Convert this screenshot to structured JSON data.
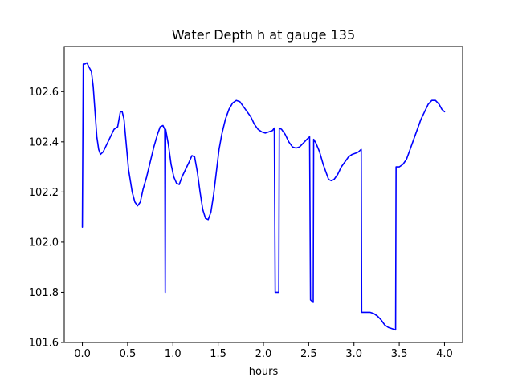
{
  "chart_data": {
    "type": "line",
    "title": "Water Depth h at gauge 135",
    "xlabel": "hours",
    "ylabel": "",
    "xlim": [
      -0.2,
      4.2
    ],
    "ylim": [
      101.6,
      102.78
    ],
    "xticks": [
      0.0,
      0.5,
      1.0,
      1.5,
      2.0,
      2.5,
      3.0,
      3.5,
      4.0
    ],
    "xtick_labels": [
      "0.0",
      "0.5",
      "1.0",
      "1.5",
      "2.0",
      "2.5",
      "3.0",
      "3.5",
      "4.0"
    ],
    "yticks": [
      101.6,
      101.8,
      102.0,
      102.2,
      102.4,
      102.6
    ],
    "ytick_labels": [
      "101.6",
      "101.8",
      "102.0",
      "102.2",
      "102.4",
      "102.6"
    ],
    "grid": false,
    "legend": "none",
    "colors": {
      "line": "#0000ff",
      "axes": "#000000",
      "background": "#ffffff"
    },
    "series": [
      {
        "points": [
          [
            0.0,
            102.06
          ],
          [
            0.01,
            102.71
          ],
          [
            0.03,
            102.71
          ],
          [
            0.05,
            102.715
          ],
          [
            0.07,
            102.7
          ],
          [
            0.1,
            102.68
          ],
          [
            0.12,
            102.62
          ],
          [
            0.14,
            102.52
          ],
          [
            0.16,
            102.42
          ],
          [
            0.18,
            102.37
          ],
          [
            0.2,
            102.35
          ],
          [
            0.23,
            102.36
          ],
          [
            0.27,
            102.39
          ],
          [
            0.31,
            102.42
          ],
          [
            0.35,
            102.45
          ],
          [
            0.39,
            102.46
          ],
          [
            0.42,
            102.52
          ],
          [
            0.44,
            102.52
          ],
          [
            0.46,
            102.49
          ],
          [
            0.48,
            102.41
          ],
          [
            0.51,
            102.29
          ],
          [
            0.55,
            102.2
          ],
          [
            0.58,
            102.16
          ],
          [
            0.61,
            102.145
          ],
          [
            0.64,
            102.16
          ],
          [
            0.67,
            102.21
          ],
          [
            0.71,
            102.26
          ],
          [
            0.75,
            102.32
          ],
          [
            0.79,
            102.38
          ],
          [
            0.83,
            102.43
          ],
          [
            0.86,
            102.46
          ],
          [
            0.89,
            102.465
          ],
          [
            0.91,
            102.45
          ],
          [
            0.915,
            101.8
          ],
          [
            0.92,
            102.45
          ],
          [
            0.95,
            102.39
          ],
          [
            0.98,
            102.31
          ],
          [
            1.01,
            102.26
          ],
          [
            1.04,
            102.235
          ],
          [
            1.07,
            102.23
          ],
          [
            1.1,
            102.26
          ],
          [
            1.14,
            102.29
          ],
          [
            1.18,
            102.32
          ],
          [
            1.21,
            102.345
          ],
          [
            1.24,
            102.34
          ],
          [
            1.27,
            102.28
          ],
          [
            1.3,
            102.2
          ],
          [
            1.33,
            102.13
          ],
          [
            1.36,
            102.095
          ],
          [
            1.39,
            102.09
          ],
          [
            1.42,
            102.12
          ],
          [
            1.45,
            102.19
          ],
          [
            1.48,
            102.28
          ],
          [
            1.51,
            102.37
          ],
          [
            1.54,
            102.43
          ],
          [
            1.58,
            102.49
          ],
          [
            1.62,
            102.53
          ],
          [
            1.66,
            102.555
          ],
          [
            1.7,
            102.565
          ],
          [
            1.74,
            102.56
          ],
          [
            1.78,
            102.54
          ],
          [
            1.82,
            102.52
          ],
          [
            1.86,
            102.5
          ],
          [
            1.9,
            102.47
          ],
          [
            1.94,
            102.45
          ],
          [
            1.98,
            102.44
          ],
          [
            2.02,
            102.435
          ],
          [
            2.06,
            102.44
          ],
          [
            2.1,
            102.445
          ],
          [
            2.12,
            102.455
          ],
          [
            2.13,
            101.8
          ],
          [
            2.17,
            101.8
          ],
          [
            2.175,
            102.455
          ],
          [
            2.2,
            102.45
          ],
          [
            2.24,
            102.43
          ],
          [
            2.28,
            102.4
          ],
          [
            2.32,
            102.38
          ],
          [
            2.36,
            102.375
          ],
          [
            2.4,
            102.38
          ],
          [
            2.44,
            102.395
          ],
          [
            2.48,
            102.41
          ],
          [
            2.51,
            102.42
          ],
          [
            2.52,
            101.77
          ],
          [
            2.55,
            101.76
          ],
          [
            2.555,
            102.41
          ],
          [
            2.58,
            102.395
          ],
          [
            2.62,
            102.36
          ],
          [
            2.66,
            102.31
          ],
          [
            2.69,
            102.28
          ],
          [
            2.72,
            102.25
          ],
          [
            2.75,
            102.245
          ],
          [
            2.78,
            102.25
          ],
          [
            2.82,
            102.27
          ],
          [
            2.86,
            102.3
          ],
          [
            2.9,
            102.32
          ],
          [
            2.94,
            102.34
          ],
          [
            2.98,
            102.35
          ],
          [
            3.02,
            102.355
          ],
          [
            3.05,
            102.36
          ],
          [
            3.08,
            102.37
          ],
          [
            3.085,
            101.72
          ],
          [
            3.12,
            101.72
          ],
          [
            3.18,
            101.72
          ],
          [
            3.22,
            101.715
          ],
          [
            3.26,
            101.705
          ],
          [
            3.3,
            101.69
          ],
          [
            3.34,
            101.67
          ],
          [
            3.38,
            101.66
          ],
          [
            3.42,
            101.655
          ],
          [
            3.46,
            101.65
          ],
          [
            3.465,
            102.3
          ],
          [
            3.5,
            102.3
          ],
          [
            3.54,
            102.31
          ],
          [
            3.58,
            102.33
          ],
          [
            3.62,
            102.37
          ],
          [
            3.66,
            102.41
          ],
          [
            3.7,
            102.45
          ],
          [
            3.74,
            102.49
          ],
          [
            3.78,
            102.52
          ],
          [
            3.82,
            102.55
          ],
          [
            3.86,
            102.565
          ],
          [
            3.9,
            102.565
          ],
          [
            3.94,
            102.55
          ],
          [
            3.97,
            102.53
          ],
          [
            4.0,
            102.52
          ]
        ]
      }
    ]
  }
}
